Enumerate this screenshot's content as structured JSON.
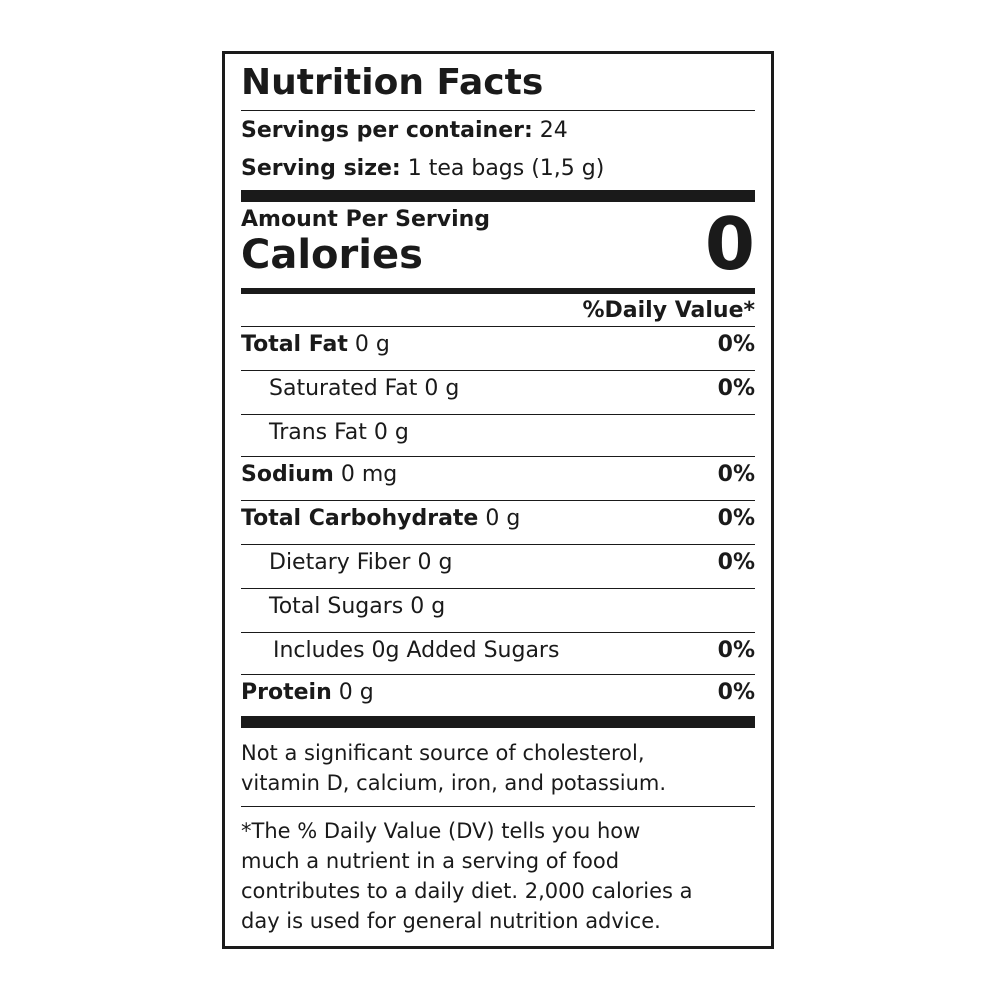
{
  "title": "Nutrition Facts",
  "servings": {
    "label": "Servings per container:",
    "value": "24"
  },
  "serving_size": {
    "label": "Serving size:",
    "value": "1 tea bags (1,5 g)"
  },
  "amount_per_serving": "Amount Per Serving",
  "calories": {
    "label": "Calories",
    "value": "0"
  },
  "dv_header": "%Daily Value*",
  "rows": [
    {
      "name": "Total Fat",
      "amount": "0 g",
      "dv": "0%",
      "bold": true,
      "indent": 0
    },
    {
      "name": "Saturated Fat",
      "amount": "0 g",
      "dv": "0%",
      "bold": false,
      "indent": 1
    },
    {
      "name": "Trans Fat",
      "amount": "0 g",
      "dv": "",
      "bold": false,
      "indent": 1
    },
    {
      "name": "Sodium",
      "amount": "0 mg",
      "dv": "0%",
      "bold": true,
      "indent": 0
    },
    {
      "name": "Total Carbohydrate",
      "amount": "0 g",
      "dv": "0%",
      "bold": true,
      "indent": 0
    },
    {
      "name": "Dietary Fiber",
      "amount": "0 g",
      "dv": "0%",
      "bold": false,
      "indent": 1
    },
    {
      "name": "Total Sugars",
      "amount": "0 g",
      "dv": "",
      "bold": false,
      "indent": 1
    },
    {
      "name": "Includes 0g Added Sugars",
      "amount": "",
      "dv": "0%",
      "bold": false,
      "indent": 2
    },
    {
      "name": "Protein",
      "amount": "0 g",
      "dv": "0%",
      "bold": true,
      "indent": 0
    }
  ],
  "note1": [
    "Not a significant source of cholesterol,",
    "vitamin D, calcium, iron, and potassium."
  ],
  "note2": [
    "*The % Daily Value (DV) tells you how",
    "much a nutrient in a serving of food",
    "contributes to a daily diet. 2,000 calories a",
    "day is used for general nutrition advice."
  ]
}
